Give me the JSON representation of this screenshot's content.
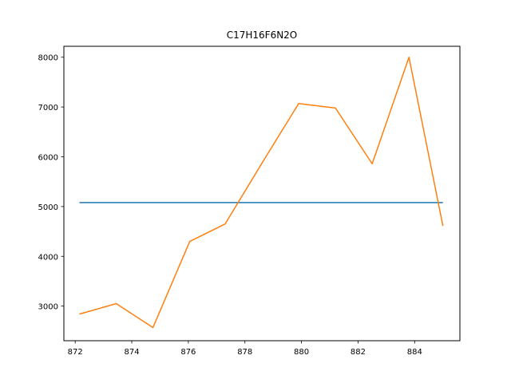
{
  "chart_data": {
    "type": "line",
    "title": "C17H16F6N2O",
    "xlabel": "",
    "ylabel": "",
    "xlim": [
      871.6,
      885.6
    ],
    "ylim": [
      2305,
      8220
    ],
    "xticks": [
      872,
      874,
      876,
      878,
      880,
      882,
      884
    ],
    "yticks": [
      3000,
      4000,
      5000,
      6000,
      7000,
      8000
    ],
    "grid": false,
    "series": [
      {
        "color": "#1f77b4",
        "x": [
          872.15,
          885.0
        ],
        "y": [
          5080,
          5080
        ]
      },
      {
        "color": "#ff7f0e",
        "x": [
          872.15,
          873.45,
          874.75,
          876.05,
          877.3,
          878.6,
          879.9,
          881.2,
          882.5,
          883.8,
          885.0
        ],
        "y": [
          2840,
          3050,
          2570,
          4300,
          4650,
          5870,
          7070,
          6980,
          5860,
          8000,
          4610
        ]
      }
    ]
  }
}
